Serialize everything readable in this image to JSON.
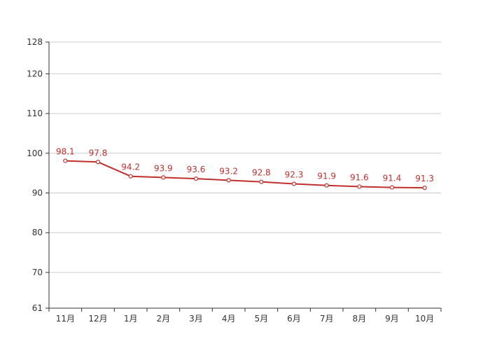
{
  "chart_data": {
    "type": "line",
    "title": "",
    "xlabel": "",
    "ylabel": "",
    "categories": [
      "11月",
      "12月",
      "1月",
      "2月",
      "3月",
      "4月",
      "5月",
      "6月",
      "7月",
      "8月",
      "9月",
      "10月"
    ],
    "series": [
      {
        "values": [
          98.1,
          97.8,
          94.2,
          93.9,
          93.6,
          93.2,
          92.8,
          92.3,
          91.9,
          91.6,
          91.4,
          91.3
        ],
        "color": "#c0302c"
      }
    ],
    "ylim": [
      61,
      128
    ],
    "yticks": [
      61,
      70,
      80,
      90,
      100,
      110,
      120,
      128
    ],
    "grid": true,
    "legend": "none",
    "data_labels": true
  }
}
